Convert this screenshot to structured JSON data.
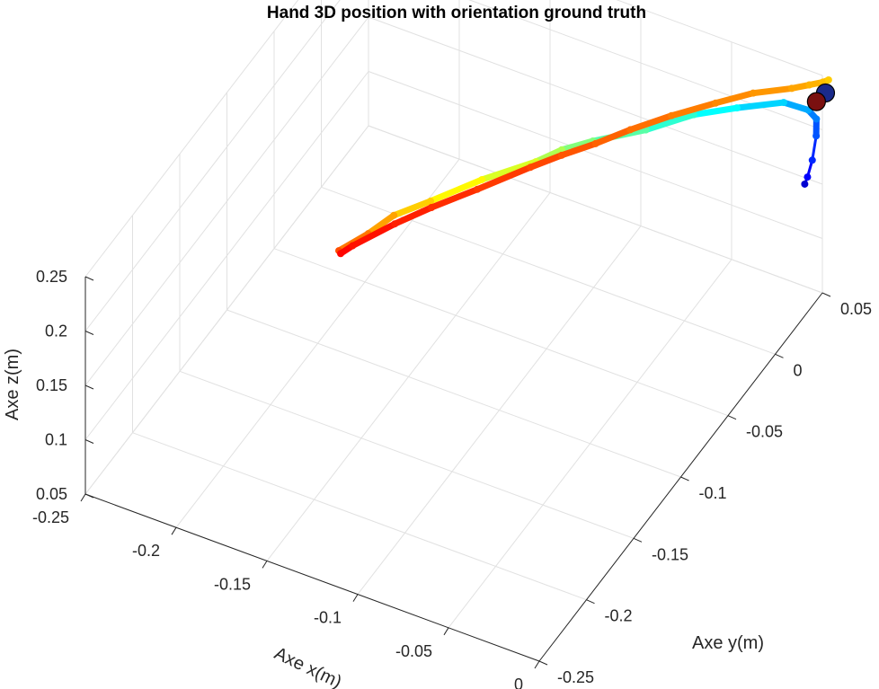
{
  "chart_data": {
    "type": "scatter",
    "dimensions": 3,
    "title": "Hand 3D position with orientation ground truth",
    "xlabel": "Axe x(m)",
    "ylabel": "Axe y(m)",
    "zlabel": "Axe z(m)",
    "xlim": [
      -0.25,
      0
    ],
    "ylim": [
      -0.25,
      0.05
    ],
    "zlim": [
      0.05,
      0.25
    ],
    "x_ticks": [
      "-0.25",
      "-0.2",
      "-0.15",
      "-0.1",
      "-0.05",
      "0"
    ],
    "y_ticks": [
      "-0.25",
      "-0.2",
      "-0.15",
      "-0.1",
      "-0.05",
      "0",
      "0.05"
    ],
    "z_ticks": [
      "0.05",
      "0.1",
      "0.15",
      "0.2",
      "0.25"
    ],
    "grid": true,
    "box": "partial",
    "series": [
      {
        "marker": "point",
        "colormap": "jet",
        "color_start": "#0018a8",
        "color_end": "#ffe400",
        "x": [
          -0.004,
          -0.003,
          -0.004,
          -0.006,
          -0.009,
          -0.014,
          -0.026,
          -0.045,
          -0.062,
          -0.08,
          -0.102,
          -0.115,
          -0.125,
          -0.148,
          -0.168,
          -0.183,
          -0.193,
          -0.205
        ],
        "y": [
          0.039,
          0.04,
          0.047,
          0.055,
          0.061,
          0.062,
          0.059,
          0.046,
          0.033,
          0.017,
          0.003,
          -0.005,
          -0.013,
          -0.026,
          -0.042,
          -0.052,
          -0.06,
          -0.068
        ],
        "z": [
          0.16,
          0.166,
          0.173,
          0.185,
          0.192,
          0.196,
          0.199,
          0.197,
          0.195,
          0.188,
          0.18,
          0.173,
          0.165,
          0.149,
          0.135,
          0.124,
          0.11,
          0.096
        ]
      },
      {
        "marker": "point",
        "colormap": "autumn",
        "color_start": "#ff0000",
        "color_end": "#ffe600",
        "x": [
          -0.204,
          -0.2,
          -0.183,
          -0.168,
          -0.15,
          -0.128,
          -0.115,
          -0.1,
          -0.085,
          -0.068,
          -0.05,
          -0.035,
          -0.02,
          -0.014,
          -0.009,
          -0.007
        ],
        "y": [
          -0.068,
          -0.063,
          -0.051,
          -0.041,
          -0.027,
          -0.013,
          -0.005,
          0.002,
          0.01,
          0.021,
          0.033,
          0.044,
          0.056,
          0.063,
          0.068,
          0.07
        ],
        "z": [
          0.094,
          0.098,
          0.115,
          0.128,
          0.14,
          0.158,
          0.168,
          0.18,
          0.193,
          0.204,
          0.213,
          0.219,
          0.219,
          0.218,
          0.218,
          0.219
        ]
      },
      {
        "marker": "large-circle",
        "color": "#1a2a8a",
        "x": [
          -0.004
        ],
        "y": [
          0.061
        ],
        "z": [
          0.219
        ]
      },
      {
        "marker": "large-circle",
        "color": "#7a1010",
        "x": [
          -0.009
        ],
        "y": [
          0.061
        ],
        "z": [
          0.208
        ]
      }
    ]
  }
}
